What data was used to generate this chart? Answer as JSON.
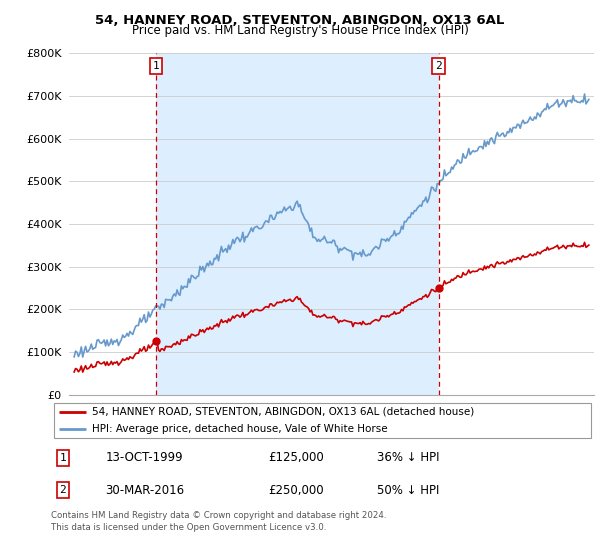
{
  "title": "54, HANNEY ROAD, STEVENTON, ABINGDON, OX13 6AL",
  "subtitle": "Price paid vs. HM Land Registry's House Price Index (HPI)",
  "property_label": "54, HANNEY ROAD, STEVENTON, ABINGDON, OX13 6AL (detached house)",
  "hpi_label": "HPI: Average price, detached house, Vale of White Horse",
  "sale1_date_label": "13-OCT-1999",
  "sale1_price_label": "£125,000",
  "sale1_hpi_label": "36% ↓ HPI",
  "sale2_date_label": "30-MAR-2016",
  "sale2_price_label": "£250,000",
  "sale2_hpi_label": "50% ↓ HPI",
  "sale1_year": 1999.79,
  "sale1_price": 125000,
  "sale2_year": 2016.24,
  "sale2_price": 250000,
  "footer": "Contains HM Land Registry data © Crown copyright and database right 2024.\nThis data is licensed under the Open Government Licence v3.0.",
  "property_color": "#cc0000",
  "hpi_color": "#6699cc",
  "shade_color": "#ddeeff",
  "vline_color": "#cc0000",
  "ylim": [
    0,
    800000
  ],
  "yticks": [
    0,
    100000,
    200000,
    300000,
    400000,
    500000,
    600000,
    700000,
    800000
  ],
  "ytick_labels": [
    "£0",
    "£100K",
    "£200K",
    "£300K",
    "£400K",
    "£500K",
    "£600K",
    "£700K",
    "£800K"
  ],
  "xlim_start": 1994.7,
  "xlim_end": 2025.3,
  "xticks": [
    1995,
    1996,
    1997,
    1998,
    1999,
    2000,
    2001,
    2002,
    2003,
    2004,
    2005,
    2006,
    2007,
    2008,
    2009,
    2010,
    2011,
    2012,
    2013,
    2014,
    2015,
    2016,
    2017,
    2018,
    2019,
    2020,
    2021,
    2022,
    2023,
    2024,
    2025
  ]
}
